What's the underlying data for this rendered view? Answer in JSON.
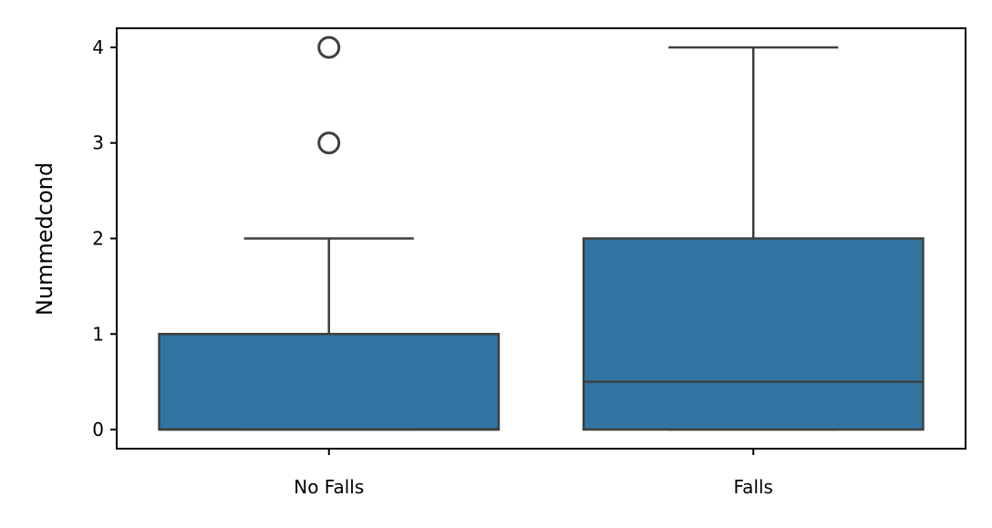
{
  "chart_data": {
    "type": "box",
    "ylabel": "Nummedcond",
    "xlabel": "",
    "ylim": [
      -0.2,
      4.2
    ],
    "yticks": [
      0,
      1,
      2,
      3,
      4
    ],
    "categories": [
      "No Falls",
      "Falls"
    ],
    "boxes": [
      {
        "category": "No Falls",
        "q1": 0,
        "median": 0,
        "q3": 1,
        "whisker_low": 0,
        "whisker_high": 2,
        "outliers": [
          3,
          4
        ]
      },
      {
        "category": "Falls",
        "q1": 0,
        "median": 0.5,
        "q3": 2,
        "whisker_low": 0,
        "whisker_high": 4,
        "outliers": []
      }
    ],
    "box_color": "#3274a1",
    "line_color": "#3f3f3f",
    "grid": false,
    "legend": "none"
  }
}
